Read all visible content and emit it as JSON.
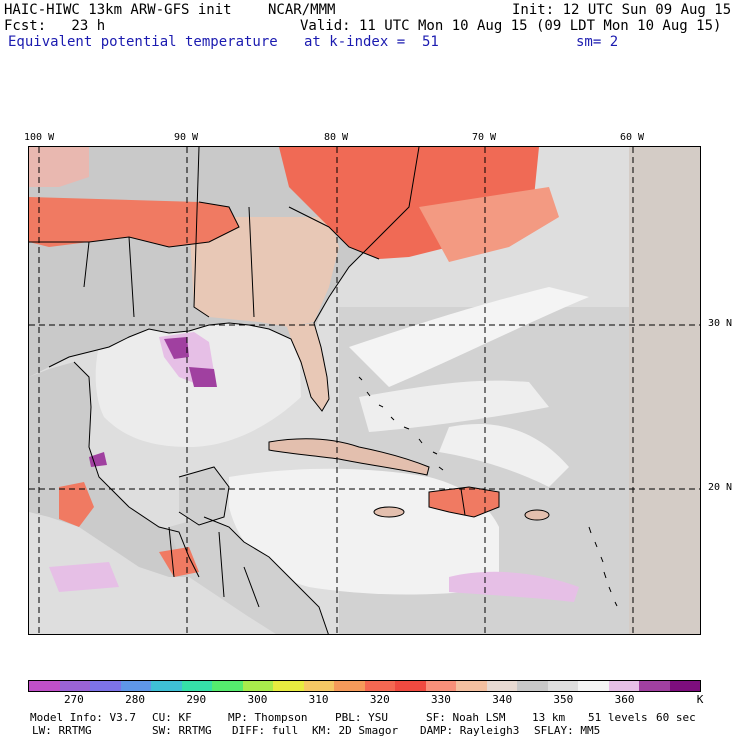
{
  "header": {
    "title_left": "HAIC-HIWC 13km ARW-GFS init",
    "title_mid": "NCAR/MMM",
    "init": "Init: 12 UTC Sun 09 Aug 15",
    "fcst": "Fcst:   23 h",
    "valid": "Valid: 11 UTC Mon 10 Aug 15 (09 LDT Mon 10 Aug 15)",
    "field": "Equivalent potential temperature",
    "level": "at k-index =  51",
    "smooth": "sm= 2"
  },
  "axes": {
    "lon_labels": [
      "100 W",
      "90 W",
      "80 W",
      "70 W",
      "60 W"
    ],
    "lat_labels": [
      "30 N",
      "20 N"
    ]
  },
  "colorbar": {
    "colors": [
      "#c050c8",
      "#9a63d6",
      "#7d73e8",
      "#5f97e8",
      "#3fc0d6",
      "#36e0a8",
      "#55ec6e",
      "#a8ec4c",
      "#e8ec40",
      "#f6c864",
      "#f69a5a",
      "#f56852",
      "#f04a40",
      "#f8907a",
      "#f4c0a0",
      "#e8dad2",
      "#c8c8c8",
      "#dedede",
      "#f4f4f4",
      "#e6bfe6",
      "#a040a0",
      "#7d0e7d"
    ],
    "tick_labels": [
      "270",
      "280",
      "290",
      "300",
      "310",
      "320",
      "330",
      "340",
      "350",
      "360"
    ],
    "unit": "K"
  },
  "footer": {
    "line1": [
      "Model Info: V3.7",
      "CU: KF",
      "MP: Thompson",
      "PBL: YSU",
      "SF: Noah LSM",
      "13 km",
      "51 levels",
      "60 sec"
    ],
    "line2": [
      "LW: RRTMG",
      "SW: RRTMG",
      "DIFF: full",
      "KM: 2D Smagor",
      "DAMP: Rayleigh3",
      "SFLAY: MM5"
    ]
  }
}
